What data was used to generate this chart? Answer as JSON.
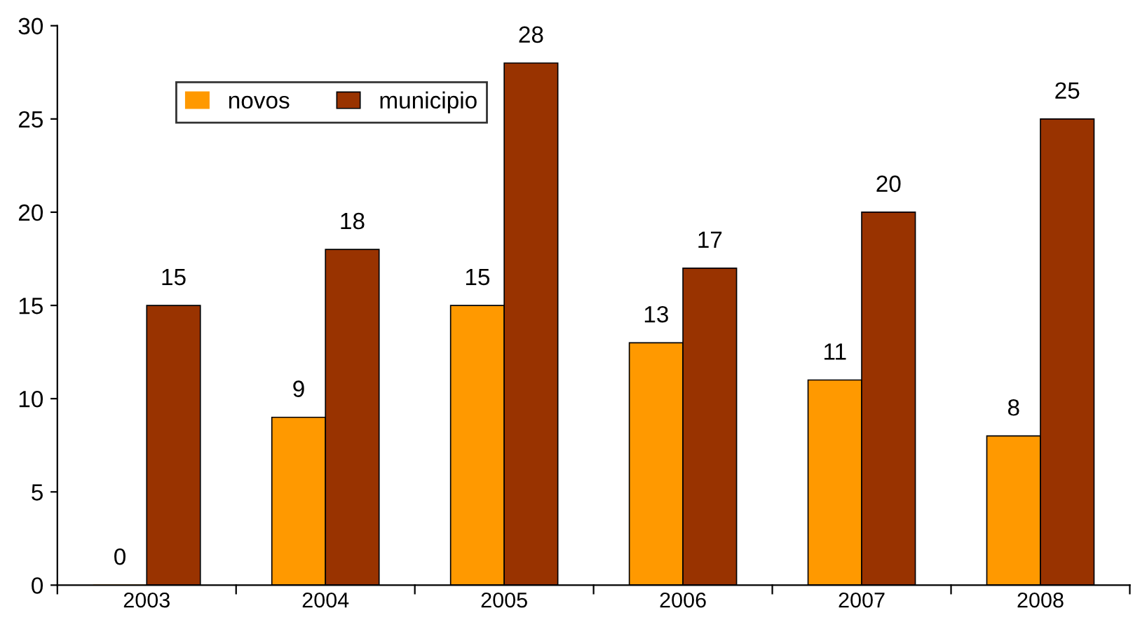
{
  "chart_data": {
    "type": "bar",
    "categories": [
      "2003",
      "2004",
      "2005",
      "2006",
      "2007",
      "2008"
    ],
    "series": [
      {
        "name": "novos",
        "color": "#ff9900",
        "values": [
          0,
          9,
          15,
          13,
          11,
          8
        ]
      },
      {
        "name": "municipio",
        "color": "#993300",
        "values": [
          15,
          18,
          28,
          17,
          20,
          25
        ]
      }
    ],
    "ylim": [
      0,
      30
    ],
    "yticks": [
      0,
      5,
      10,
      15,
      20,
      25,
      30
    ],
    "data_labels": true,
    "legend": "top left",
    "grid": false
  }
}
